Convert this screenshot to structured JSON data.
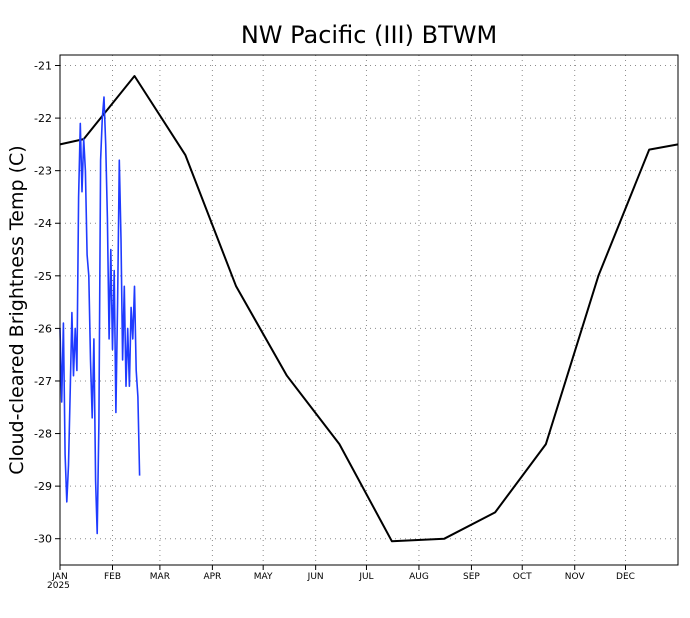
{
  "chart_data": {
    "type": "line",
    "title": "NW Pacific (III) BTWM",
    "ylabel": "Cloud-cleared Brightness Temp (C)",
    "xlabel": "",
    "ylim": [
      -30.5,
      -20.8
    ],
    "yticks": [
      -21,
      -22,
      -23,
      -24,
      -25,
      -26,
      -27,
      -28,
      -29,
      -30
    ],
    "ytick_labels": [
      "-21",
      "-22",
      "-23",
      "-24",
      "-25",
      "-26",
      "-27",
      "-28",
      "-29",
      "-30"
    ],
    "xlim": [
      "2025-01-01",
      "2026-01-01"
    ],
    "xticks": [
      "2025-01-01",
      "2025-02-01",
      "2025-03-01",
      "2025-04-01",
      "2025-05-01",
      "2025-06-01",
      "2025-07-01",
      "2025-08-01",
      "2025-09-01",
      "2025-10-01",
      "2025-11-01",
      "2025-12-01"
    ],
    "xtick_labels": [
      "JAN",
      "FEB",
      "MAR",
      "APR",
      "MAY",
      "JUN",
      "JUL",
      "AUG",
      "SEP",
      "OCT",
      "NOV",
      "DEC"
    ],
    "year_label": "2025",
    "grid": true,
    "series": [
      {
        "color": "#000000",
        "points": [
          [
            "2025-01-01",
            -22.5
          ],
          [
            "2025-01-15",
            -22.4
          ],
          [
            "2025-02-14",
            -21.2
          ],
          [
            "2025-03-16",
            -22.7
          ],
          [
            "2025-04-15",
            -25.2
          ],
          [
            "2025-05-15",
            -26.9
          ],
          [
            "2025-06-15",
            -28.2
          ],
          [
            "2025-07-16",
            -30.05
          ],
          [
            "2025-08-16",
            -30.0
          ],
          [
            "2025-09-15",
            -29.5
          ],
          [
            "2025-10-15",
            -28.2
          ],
          [
            "2025-11-15",
            -25.0
          ],
          [
            "2025-12-15",
            -22.6
          ],
          [
            "2026-01-01",
            -22.5
          ]
        ]
      },
      {
        "color": "#1f3bff",
        "points": [
          [
            "2025-01-01",
            -26.0
          ],
          [
            "2025-01-02",
            -27.4
          ],
          [
            "2025-01-03",
            -25.9
          ],
          [
            "2025-01-04",
            -28.4
          ],
          [
            "2025-01-05",
            -29.3
          ],
          [
            "2025-01-06",
            -28.6
          ],
          [
            "2025-01-07",
            -27.2
          ],
          [
            "2025-01-08",
            -25.7
          ],
          [
            "2025-01-09",
            -26.9
          ],
          [
            "2025-01-10",
            -26.0
          ],
          [
            "2025-01-11",
            -26.8
          ],
          [
            "2025-01-12",
            -23.5
          ],
          [
            "2025-01-13",
            -22.1
          ],
          [
            "2025-01-14",
            -23.4
          ],
          [
            "2025-01-15",
            -22.4
          ],
          [
            "2025-01-16",
            -23.0
          ],
          [
            "2025-01-17",
            -24.6
          ],
          [
            "2025-01-18",
            -25.0
          ],
          [
            "2025-01-19",
            -26.6
          ],
          [
            "2025-01-20",
            -27.7
          ],
          [
            "2025-01-21",
            -26.2
          ],
          [
            "2025-01-22",
            -28.9
          ],
          [
            "2025-01-23",
            -29.9
          ],
          [
            "2025-01-24",
            -27.8
          ],
          [
            "2025-01-25",
            -22.8
          ],
          [
            "2025-01-26",
            -22.0
          ],
          [
            "2025-01-27",
            -21.6
          ],
          [
            "2025-01-28",
            -22.5
          ],
          [
            "2025-01-29",
            -23.9
          ],
          [
            "2025-01-30",
            -26.2
          ],
          [
            "2025-01-31",
            -24.5
          ],
          [
            "2025-02-01",
            -26.4
          ],
          [
            "2025-02-02",
            -24.9
          ],
          [
            "2025-02-03",
            -27.6
          ],
          [
            "2025-02-04",
            -25.5
          ],
          [
            "2025-02-05",
            -22.8
          ],
          [
            "2025-02-06",
            -24.3
          ],
          [
            "2025-02-07",
            -26.6
          ],
          [
            "2025-02-08",
            -25.2
          ],
          [
            "2025-02-09",
            -27.1
          ],
          [
            "2025-02-10",
            -26.0
          ],
          [
            "2025-02-11",
            -27.1
          ],
          [
            "2025-02-12",
            -25.6
          ],
          [
            "2025-02-13",
            -26.2
          ],
          [
            "2025-02-14",
            -25.2
          ],
          [
            "2025-02-15",
            -26.8
          ],
          [
            "2025-02-16",
            -27.3
          ],
          [
            "2025-02-17",
            -28.8
          ]
        ]
      }
    ]
  }
}
